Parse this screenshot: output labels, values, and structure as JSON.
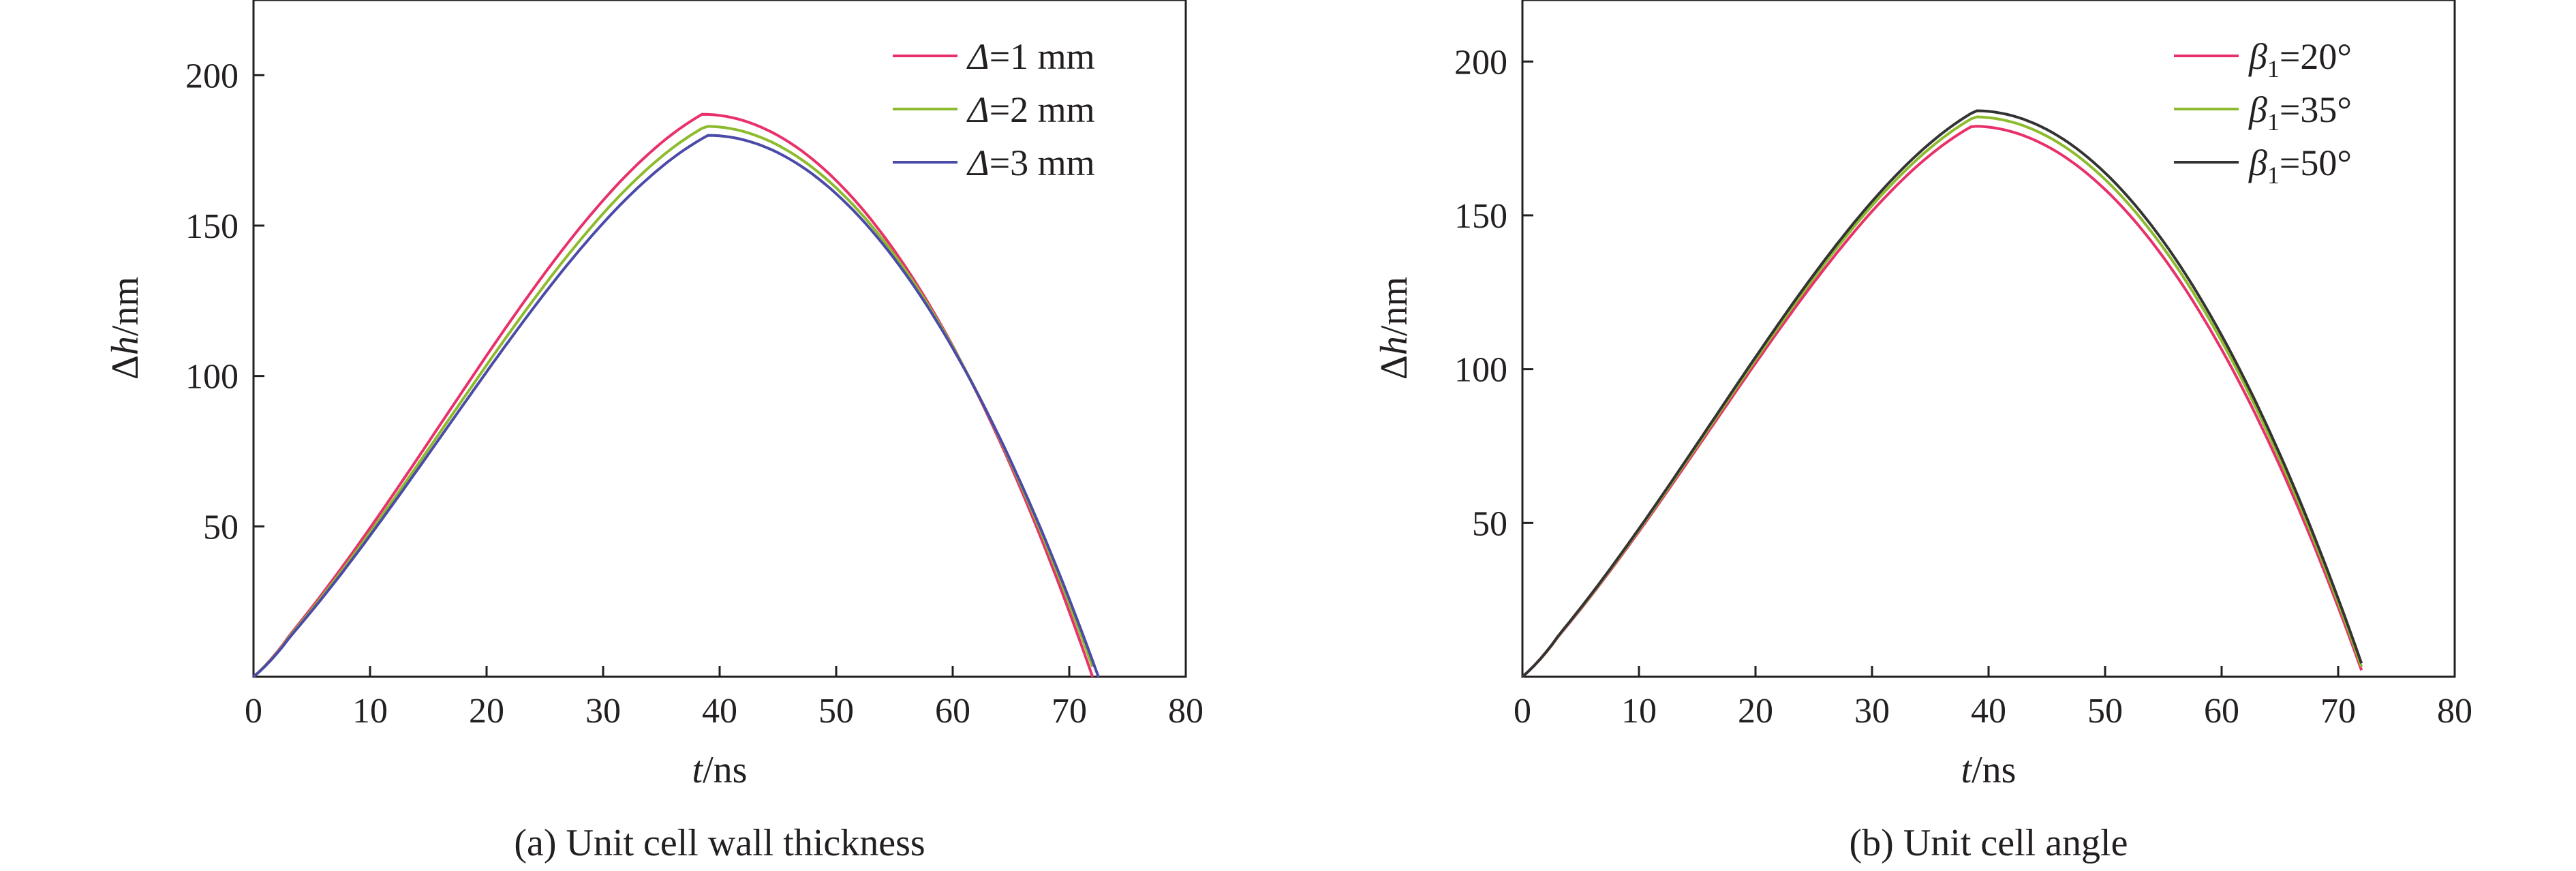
{
  "chart_data": [
    {
      "type": "line",
      "caption": "(a) Unit cell wall thickness",
      "xlabel": {
        "var": "t",
        "unit": "/ns"
      },
      "ylabel": {
        "prefix": "Δ",
        "var": "h",
        "unit": "/nm"
      },
      "xlim": [
        0,
        80
      ],
      "ylim": [
        0,
        225
      ],
      "xticks": [
        "0",
        "10",
        "20",
        "30",
        "40",
        "50",
        "60",
        "70",
        "80"
      ],
      "yticks": [
        "50",
        "100",
        "150",
        "200"
      ],
      "grid": false,
      "legend_position": "top-right",
      "x": [
        0,
        2,
        4,
        6,
        8,
        10,
        12,
        14,
        16,
        18,
        20,
        22,
        24,
        26,
        28,
        30,
        32,
        34,
        36,
        38,
        40,
        42,
        44,
        46,
        48,
        50,
        52,
        54,
        56,
        58,
        60,
        62,
        64,
        66,
        68,
        70,
        72
      ],
      "series": [
        {
          "name": "Δ=1 mm",
          "label_var": "Δ",
          "label_rest": "=1 mm",
          "color": "#e8316a",
          "peak": 187,
          "peak_x": 38.5,
          "end_x": 72.0
        },
        {
          "name": "Δ=2 mm",
          "label_var": "Δ",
          "label_rest": "=2 mm",
          "color": "#8dbb2e",
          "peak": 183,
          "peak_x": 38.8,
          "end_x": 72.3
        },
        {
          "name": "Δ=3 mm",
          "label_var": "Δ",
          "label_rest": "=3 mm",
          "color": "#4a4aa8",
          "peak": 180,
          "peak_x": 39.0,
          "end_x": 72.5
        }
      ]
    },
    {
      "type": "line",
      "caption": "(b) Unit cell angle",
      "xlabel": {
        "var": "t",
        "unit": "/ns"
      },
      "ylabel": {
        "prefix": "Δ",
        "var": "h",
        "unit": "/nm"
      },
      "xlim": [
        0,
        80
      ],
      "ylim": [
        0,
        220
      ],
      "xticks": [
        "0",
        "10",
        "20",
        "30",
        "40",
        "50",
        "60",
        "70",
        "80"
      ],
      "yticks": [
        "50",
        "100",
        "150",
        "200"
      ],
      "grid": false,
      "legend_position": "top-right",
      "x": [
        0,
        2,
        4,
        6,
        8,
        10,
        12,
        14,
        16,
        18,
        20,
        22,
        24,
        26,
        28,
        30,
        32,
        34,
        36,
        38,
        40,
        42,
        44,
        46,
        48,
        50,
        52,
        54,
        56,
        58,
        60,
        62,
        64,
        66,
        68,
        70,
        72
      ],
      "series": [
        {
          "name": "β1=20°",
          "label_var": "β",
          "label_sub": "1",
          "label_rest": "=20°",
          "color": "#e8316a",
          "peak": 179,
          "peak_x": 38.6,
          "end_x": 72.2
        },
        {
          "name": "β1=35°",
          "label_var": "β",
          "label_sub": "1",
          "label_rest": "=35°",
          "color": "#8dbb2e",
          "peak": 182,
          "peak_x": 38.8,
          "end_x": 72.3
        },
        {
          "name": "β1=50°",
          "label_var": "β",
          "label_sub": "1",
          "label_rest": "=50°",
          "color": "#333333",
          "peak": 184,
          "peak_x": 38.9,
          "end_x": 72.4
        }
      ]
    }
  ]
}
